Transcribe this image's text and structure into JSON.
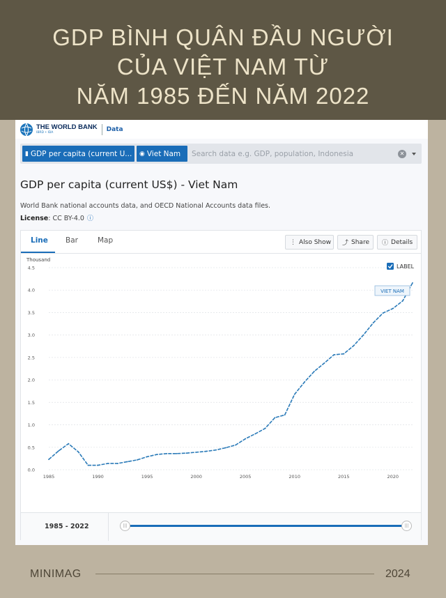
{
  "banner": {
    "line1": "GDP BÌNH QUÂN ĐẦU NGƯỜI",
    "line2": "CỦA VIỆT NAM TỪ",
    "line3": "NĂM 1985 ĐẾN NĂM 2022"
  },
  "header": {
    "org_name": "THE WORLD BANK",
    "org_sub": "IBRD • IDA",
    "section": "Data"
  },
  "search": {
    "indicator_chip": "GDP per capita (current U...",
    "country_chip": "Viet Nam",
    "placeholder": "Search data e.g. GDP, population, Indonesia"
  },
  "page": {
    "title": "GDP per capita (current US$) - Viet Nam",
    "source": "World Bank national accounts data, and OECD National Accounts data files.",
    "license_label": "License",
    "license_value": ": CC BY-4.0"
  },
  "tabs": [
    "Line",
    "Bar",
    "Map"
  ],
  "toolbar": {
    "also_show": "Also Show",
    "share": "Share",
    "details": "Details"
  },
  "range": {
    "label": "1985 - 2022"
  },
  "footer": {
    "brand": "MINIMAG",
    "year": "2024"
  },
  "colors": {
    "accent": "#1a6db8",
    "banner_bg": "#5e5745",
    "banner_text": "#ede3c8"
  },
  "chart_data": {
    "type": "line",
    "unit_label": "Thousand",
    "legend_checkbox_label": "LABEL",
    "series_label": "VIET NAM",
    "x": [
      1985,
      1986,
      1987,
      1988,
      1989,
      1990,
      1991,
      1992,
      1993,
      1994,
      1995,
      1996,
      1997,
      1998,
      1999,
      2000,
      2001,
      2002,
      2003,
      2004,
      2005,
      2006,
      2007,
      2008,
      2009,
      2010,
      2011,
      2012,
      2013,
      2014,
      2015,
      2016,
      2017,
      2018,
      2019,
      2020,
      2021,
      2022
    ],
    "series": [
      {
        "name": "Viet Nam",
        "values": [
          0.23,
          0.42,
          0.58,
          0.4,
          0.1,
          0.1,
          0.14,
          0.14,
          0.18,
          0.22,
          0.29,
          0.34,
          0.36,
          0.36,
          0.37,
          0.39,
          0.41,
          0.44,
          0.49,
          0.55,
          0.69,
          0.8,
          0.92,
          1.16,
          1.22,
          1.68,
          1.95,
          2.19,
          2.37,
          2.56,
          2.58,
          2.76,
          3.0,
          3.27,
          3.49,
          3.59,
          3.76,
          4.16
        ]
      }
    ],
    "xticks": [
      1985,
      1990,
      1995,
      2000,
      2005,
      2010,
      2015,
      2020
    ],
    "yticks": [
      0.0,
      0.5,
      1.0,
      1.5,
      2.0,
      2.5,
      3.0,
      3.5,
      4.0,
      4.5
    ],
    "ylim": [
      0,
      4.5
    ],
    "xlim": [
      1985,
      2022
    ]
  }
}
